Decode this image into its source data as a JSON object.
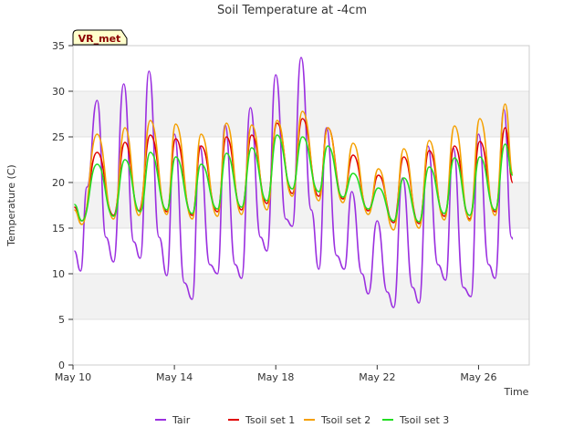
{
  "chart_data": {
    "type": "line",
    "title": "Soil Temperature at -4cm",
    "xlabel": "Time",
    "ylabel": "Temperature (C)",
    "badge": "VR_met",
    "ylim": [
      0,
      35
    ],
    "yticks": [
      0,
      5,
      10,
      15,
      20,
      25,
      30,
      35
    ],
    "xlim": [
      "2023-05-10",
      "2023-05-28"
    ],
    "xticks": [
      {
        "date": "May 10",
        "day": 10
      },
      {
        "date": "May 14",
        "day": 14
      },
      {
        "date": "May 18",
        "day": 18
      },
      {
        "date": "May 22",
        "day": 22
      },
      {
        "date": "May 26",
        "day": 26
      }
    ],
    "grid": "horizontal bands",
    "legend_position": "bottom-center",
    "colors": {
      "Tair": "#9b30e0",
      "Tsoil set 1": "#e00000",
      "Tsoil set 2": "#f5a000",
      "Tsoil set 3": "#22dd22"
    },
    "daily_extremes_note": "daily min/max per series, x in day-of-May",
    "series": [
      {
        "name": "Tair",
        "points": [
          [
            10.05,
            12.5
          ],
          [
            10.3,
            10.3
          ],
          [
            10.55,
            19.5
          ],
          [
            10.95,
            29.0
          ],
          [
            11.3,
            14.0
          ],
          [
            11.6,
            11.3
          ],
          [
            12.0,
            30.8
          ],
          [
            12.4,
            13.5
          ],
          [
            12.65,
            11.7
          ],
          [
            13.0,
            32.2
          ],
          [
            13.4,
            14.0
          ],
          [
            13.7,
            9.8
          ],
          [
            14.0,
            25.3
          ],
          [
            14.4,
            9.0
          ],
          [
            14.7,
            7.2
          ],
          [
            15.0,
            24.0
          ],
          [
            15.4,
            11.0
          ],
          [
            15.7,
            10.0
          ],
          [
            16.0,
            26.3
          ],
          [
            16.4,
            11.0
          ],
          [
            16.65,
            9.5
          ],
          [
            17.0,
            28.2
          ],
          [
            17.4,
            14.0
          ],
          [
            17.65,
            12.5
          ],
          [
            18.0,
            31.8
          ],
          [
            18.4,
            16.0
          ],
          [
            18.65,
            15.2
          ],
          [
            19.0,
            33.7
          ],
          [
            19.4,
            17.0
          ],
          [
            19.7,
            10.5
          ],
          [
            20.0,
            26.0
          ],
          [
            20.4,
            12.0
          ],
          [
            20.7,
            10.5
          ],
          [
            21.0,
            19.0
          ],
          [
            21.4,
            10.0
          ],
          [
            21.65,
            7.8
          ],
          [
            22.0,
            15.8
          ],
          [
            22.4,
            8.0
          ],
          [
            22.65,
            6.3
          ],
          [
            23.0,
            20.5
          ],
          [
            23.4,
            8.5
          ],
          [
            23.65,
            6.8
          ],
          [
            24.0,
            24.0
          ],
          [
            24.4,
            11.0
          ],
          [
            24.7,
            9.3
          ],
          [
            25.0,
            23.8
          ],
          [
            25.4,
            8.5
          ],
          [
            25.7,
            7.5
          ],
          [
            26.0,
            25.3
          ],
          [
            26.4,
            11.0
          ],
          [
            26.65,
            9.5
          ],
          [
            27.0,
            28.0
          ],
          [
            27.3,
            14.0
          ],
          [
            27.35,
            13.8
          ]
        ]
      },
      {
        "name": "Tsoil set 1",
        "points": [
          [
            10.05,
            17.3
          ],
          [
            10.35,
            15.8
          ],
          [
            10.95,
            23.3
          ],
          [
            11.6,
            16.4
          ],
          [
            12.05,
            24.4
          ],
          [
            12.6,
            16.9
          ],
          [
            13.05,
            25.2
          ],
          [
            13.7,
            16.8
          ],
          [
            14.05,
            24.8
          ],
          [
            14.7,
            16.4
          ],
          [
            15.05,
            24.0
          ],
          [
            15.7,
            16.8
          ],
          [
            16.05,
            25.0
          ],
          [
            16.65,
            17.0
          ],
          [
            17.05,
            25.2
          ],
          [
            17.65,
            17.7
          ],
          [
            18.05,
            26.5
          ],
          [
            18.65,
            18.8
          ],
          [
            19.05,
            27.0
          ],
          [
            19.7,
            18.5
          ],
          [
            20.05,
            26.0
          ],
          [
            20.65,
            18.2
          ],
          [
            21.05,
            23.0
          ],
          [
            21.65,
            16.9
          ],
          [
            22.05,
            20.8
          ],
          [
            22.65,
            15.6
          ],
          [
            23.05,
            22.8
          ],
          [
            23.65,
            15.5
          ],
          [
            24.05,
            23.5
          ],
          [
            24.65,
            16.3
          ],
          [
            25.05,
            24.0
          ],
          [
            25.65,
            16.0
          ],
          [
            26.05,
            24.5
          ],
          [
            26.65,
            16.8
          ],
          [
            27.05,
            26.0
          ],
          [
            27.35,
            20.0
          ]
        ]
      },
      {
        "name": "Tsoil set 2",
        "points": [
          [
            10.05,
            17.0
          ],
          [
            10.35,
            15.4
          ],
          [
            10.95,
            25.3
          ],
          [
            11.6,
            16.0
          ],
          [
            12.05,
            26.0
          ],
          [
            12.6,
            16.4
          ],
          [
            13.05,
            26.8
          ],
          [
            13.7,
            16.5
          ],
          [
            14.05,
            26.4
          ],
          [
            14.7,
            16.0
          ],
          [
            15.05,
            25.3
          ],
          [
            15.7,
            16.3
          ],
          [
            16.05,
            26.5
          ],
          [
            16.65,
            16.5
          ],
          [
            17.05,
            26.3
          ],
          [
            17.65,
            17.0
          ],
          [
            18.05,
            26.8
          ],
          [
            18.65,
            18.5
          ],
          [
            19.05,
            27.8
          ],
          [
            19.7,
            18.0
          ],
          [
            20.05,
            26.0
          ],
          [
            20.65,
            17.8
          ],
          [
            21.05,
            24.3
          ],
          [
            21.65,
            16.5
          ],
          [
            22.05,
            21.5
          ],
          [
            22.65,
            14.8
          ],
          [
            23.05,
            23.7
          ],
          [
            23.65,
            15.0
          ],
          [
            24.05,
            24.6
          ],
          [
            24.65,
            15.9
          ],
          [
            25.05,
            26.2
          ],
          [
            25.65,
            15.8
          ],
          [
            26.05,
            27.0
          ],
          [
            26.65,
            16.4
          ],
          [
            27.05,
            28.6
          ],
          [
            27.35,
            21.0
          ]
        ]
      },
      {
        "name": "Tsoil set 3",
        "points": [
          [
            10.05,
            17.6
          ],
          [
            10.35,
            15.8
          ],
          [
            10.95,
            22.0
          ],
          [
            11.6,
            16.3
          ],
          [
            12.05,
            22.5
          ],
          [
            12.65,
            16.8
          ],
          [
            13.05,
            23.3
          ],
          [
            13.7,
            17.0
          ],
          [
            14.05,
            22.8
          ],
          [
            14.7,
            16.6
          ],
          [
            15.05,
            22.0
          ],
          [
            15.7,
            17.1
          ],
          [
            16.05,
            23.2
          ],
          [
            16.65,
            17.3
          ],
          [
            17.05,
            23.8
          ],
          [
            17.65,
            18.0
          ],
          [
            18.05,
            25.2
          ],
          [
            18.65,
            19.3
          ],
          [
            19.05,
            25.0
          ],
          [
            19.7,
            19.0
          ],
          [
            20.05,
            24.0
          ],
          [
            20.65,
            18.4
          ],
          [
            21.05,
            21.0
          ],
          [
            21.65,
            17.1
          ],
          [
            22.05,
            19.4
          ],
          [
            22.65,
            15.8
          ],
          [
            23.05,
            20.5
          ],
          [
            23.65,
            15.7
          ],
          [
            24.05,
            21.7
          ],
          [
            24.65,
            16.6
          ],
          [
            25.05,
            22.7
          ],
          [
            25.65,
            16.4
          ],
          [
            26.05,
            22.8
          ],
          [
            26.65,
            17.0
          ],
          [
            27.05,
            24.2
          ],
          [
            27.35,
            20.8
          ]
        ]
      }
    ]
  }
}
